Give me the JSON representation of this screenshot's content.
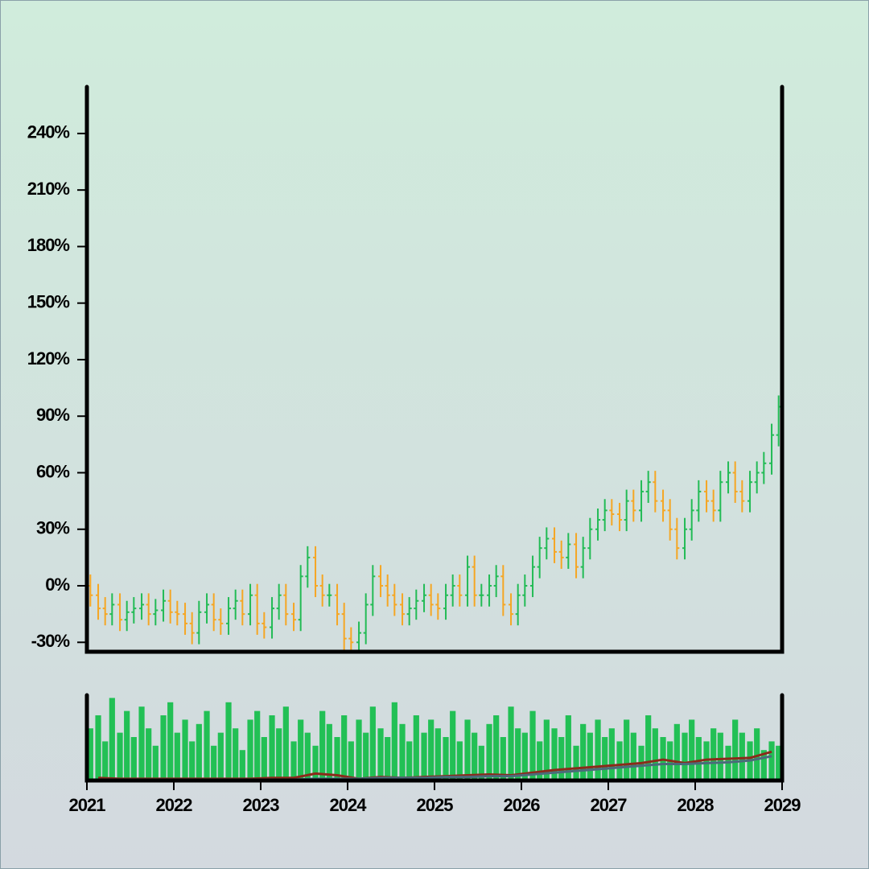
{
  "chart_data": [
    {
      "type": "ohlc",
      "x": [
        2021.04,
        2021.13,
        2021.21,
        2021.29,
        2021.38,
        2021.46,
        2021.54,
        2021.63,
        2021.71,
        2021.79,
        2021.88,
        2021.96,
        2022.04,
        2022.13,
        2022.21,
        2022.29,
        2022.38,
        2022.46,
        2022.54,
        2022.63,
        2022.71,
        2022.79,
        2022.88,
        2022.96,
        2023.04,
        2023.13,
        2023.21,
        2023.29,
        2023.38,
        2023.46,
        2023.54,
        2023.63,
        2023.71,
        2023.79,
        2023.88,
        2023.96,
        2024.04,
        2024.13,
        2024.21,
        2024.29,
        2024.38,
        2024.46,
        2024.54,
        2024.63,
        2024.71,
        2024.79,
        2024.88,
        2024.96,
        2025.04,
        2025.13,
        2025.21,
        2025.29,
        2025.38,
        2025.46,
        2025.54,
        2025.63,
        2025.71,
        2025.79,
        2025.88,
        2025.96,
        2026.04,
        2026.13,
        2026.21,
        2026.29,
        2026.38,
        2026.46,
        2026.54,
        2026.63,
        2026.71,
        2026.79,
        2026.88,
        2026.96,
        2027.04,
        2027.13,
        2027.21,
        2027.29,
        2027.38,
        2027.46,
        2027.54,
        2027.63,
        2027.71,
        2027.79,
        2027.88,
        2027.96,
        2028.04,
        2028.13,
        2028.21,
        2028.29,
        2028.38,
        2028.46,
        2028.54,
        2028.63,
        2028.71,
        2028.79,
        2028.88,
        2028.96
      ],
      "open": [
        0,
        -5,
        -12,
        -15,
        -10,
        -18,
        -14,
        -12,
        -10,
        -15,
        -13,
        -8,
        -14,
        -15,
        -20,
        -25,
        -14,
        -10,
        -18,
        -20,
        -12,
        -8,
        -15,
        -5,
        -20,
        -22,
        -12,
        -5,
        -15,
        -18,
        5,
        15,
        0,
        -5,
        -5,
        -15,
        -28,
        -30,
        -25,
        -10,
        5,
        0,
        -5,
        -10,
        -15,
        -12,
        -8,
        -5,
        -10,
        -12,
        -5,
        0,
        -5,
        10,
        -5,
        -5,
        0,
        5,
        -10,
        -15,
        -5,
        0,
        10,
        20,
        25,
        18,
        15,
        22,
        10,
        20,
        30,
        35,
        40,
        38,
        35,
        45,
        40,
        50,
        55,
        45,
        40,
        30,
        20,
        30,
        40,
        50,
        45,
        40,
        55,
        60,
        50,
        45,
        55,
        60,
        65,
        80
      ],
      "high": [
        6,
        1,
        -6,
        -4,
        -4,
        -8,
        -6,
        -4,
        -4,
        -7,
        -2,
        -2,
        -8,
        -9,
        -14,
        -8,
        -4,
        -4,
        -12,
        -6,
        -2,
        -2,
        1,
        1,
        -14,
        -6,
        1,
        1,
        -9,
        11,
        21,
        21,
        6,
        1,
        1,
        -9,
        -22,
        -19,
        -4,
        11,
        11,
        6,
        1,
        -4,
        -6,
        -2,
        1,
        1,
        -4,
        1,
        6,
        6,
        16,
        16,
        1,
        6,
        11,
        11,
        -4,
        1,
        6,
        16,
        26,
        31,
        31,
        24,
        28,
        28,
        26,
        36,
        41,
        46,
        46,
        44,
        51,
        51,
        56,
        61,
        61,
        51,
        46,
        36,
        36,
        46,
        56,
        56,
        51,
        61,
        66,
        66,
        56,
        61,
        66,
        71,
        86,
        101
      ],
      "low": [
        -11,
        -18,
        -21,
        -21,
        -24,
        -24,
        -20,
        -18,
        -21,
        -21,
        -19,
        -20,
        -21,
        -26,
        -31,
        -31,
        -20,
        -24,
        -26,
        -26,
        -18,
        -21,
        -21,
        -26,
        -28,
        -28,
        -18,
        -21,
        -24,
        -24,
        -1,
        -6,
        -11,
        -11,
        -21,
        -34,
        -36,
        -36,
        -31,
        -16,
        -6,
        -11,
        -16,
        -21,
        -21,
        -18,
        -14,
        -16,
        -18,
        -18,
        -11,
        -11,
        -11,
        -11,
        -11,
        -11,
        -6,
        -16,
        -21,
        -21,
        -11,
        -6,
        4,
        14,
        12,
        9,
        9,
        4,
        4,
        14,
        24,
        29,
        32,
        29,
        29,
        34,
        34,
        44,
        39,
        34,
        24,
        14,
        14,
        24,
        34,
        39,
        34,
        34,
        49,
        44,
        39,
        39,
        49,
        54,
        59,
        74
      ],
      "close": [
        -5,
        -12,
        -15,
        -10,
        -18,
        -14,
        -12,
        -10,
        -15,
        -13,
        -8,
        -14,
        -15,
        -20,
        -25,
        -14,
        -10,
        -18,
        -20,
        -12,
        -8,
        -15,
        -5,
        -20,
        -22,
        -12,
        -5,
        -15,
        -18,
        5,
        15,
        0,
        -5,
        -5,
        -15,
        -28,
        -30,
        -25,
        -10,
        5,
        0,
        -5,
        -10,
        -15,
        -12,
        -8,
        -5,
        -10,
        -12,
        -5,
        0,
        -5,
        10,
        -5,
        -5,
        0,
        5,
        -10,
        -15,
        -5,
        0,
        10,
        20,
        25,
        18,
        15,
        22,
        10,
        20,
        30,
        35,
        40,
        38,
        35,
        45,
        40,
        50,
        55,
        45,
        40,
        30,
        20,
        30,
        40,
        50,
        45,
        40,
        55,
        60,
        50,
        45,
        55,
        60,
        65,
        80,
        95
      ],
      "up_color": "#22bb55",
      "down_color": "#f5a623",
      "xlim": [
        2021,
        2029
      ],
      "ylim": [
        -35,
        266
      ],
      "yticks": [
        {
          "value": -30,
          "label": "-30%"
        },
        {
          "value": 0,
          "label": "0%"
        },
        {
          "value": 30,
          "label": "30%"
        },
        {
          "value": 60,
          "label": "60%"
        },
        {
          "value": 90,
          "label": "90%"
        },
        {
          "value": 120,
          "label": "120%"
        },
        {
          "value": 150,
          "label": "150%"
        },
        {
          "value": 180,
          "label": "180%"
        },
        {
          "value": 210,
          "label": "210%"
        },
        {
          "value": 240,
          "label": "240%"
        }
      ]
    },
    {
      "type": "bar",
      "x": [
        2021.04,
        2021.13,
        2021.21,
        2021.29,
        2021.38,
        2021.46,
        2021.54,
        2021.63,
        2021.71,
        2021.79,
        2021.88,
        2021.96,
        2022.04,
        2022.13,
        2022.21,
        2022.29,
        2022.38,
        2022.46,
        2022.54,
        2022.63,
        2022.71,
        2022.79,
        2022.88,
        2022.96,
        2023.04,
        2023.13,
        2023.21,
        2023.29,
        2023.38,
        2023.46,
        2023.54,
        2023.63,
        2023.71,
        2023.79,
        2023.88,
        2023.96,
        2024.04,
        2024.13,
        2024.21,
        2024.29,
        2024.38,
        2024.46,
        2024.54,
        2024.63,
        2024.71,
        2024.79,
        2024.88,
        2024.96,
        2025.04,
        2025.13,
        2025.21,
        2025.29,
        2025.38,
        2025.46,
        2025.54,
        2025.63,
        2025.71,
        2025.79,
        2025.88,
        2025.96,
        2026.04,
        2026.13,
        2026.21,
        2026.29,
        2026.38,
        2026.46,
        2026.54,
        2026.63,
        2026.71,
        2026.79,
        2026.88,
        2026.96,
        2027.04,
        2027.13,
        2027.21,
        2027.29,
        2027.38,
        2027.46,
        2027.54,
        2027.63,
        2027.71,
        2027.79,
        2027.88,
        2027.96,
        2028.04,
        2028.13,
        2028.21,
        2028.29,
        2028.38,
        2028.46,
        2028.54,
        2028.63,
        2028.71,
        2028.79,
        2028.88,
        2028.96
      ],
      "values": [
        60,
        75,
        45,
        95,
        55,
        80,
        50,
        85,
        60,
        40,
        75,
        90,
        55,
        70,
        45,
        65,
        80,
        40,
        55,
        90,
        60,
        35,
        70,
        80,
        50,
        75,
        60,
        85,
        45,
        70,
        55,
        40,
        80,
        65,
        50,
        75,
        45,
        70,
        55,
        85,
        60,
        50,
        90,
        65,
        45,
        75,
        55,
        70,
        60,
        50,
        80,
        45,
        70,
        55,
        40,
        65,
        75,
        50,
        85,
        60,
        55,
        80,
        45,
        70,
        60,
        50,
        75,
        40,
        65,
        55,
        70,
        50,
        60,
        45,
        70,
        55,
        40,
        75,
        60,
        50,
        45,
        65,
        55,
        70,
        50,
        45,
        60,
        55,
        40,
        70,
        55,
        45,
        60,
        35,
        45,
        40
      ],
      "color": "#22c055",
      "series": [
        {
          "color": "#8b2a1a",
          "x": [
            2021.13,
            2021.38,
            2021.63,
            2021.88,
            2022.13,
            2022.38,
            2022.63,
            2022.88,
            2023.13,
            2023.38,
            2023.63,
            2023.88,
            2024.13,
            2024.38,
            2024.63,
            2024.88,
            2025.13,
            2025.38,
            2025.63,
            2025.88,
            2026.13,
            2026.38,
            2026.63,
            2026.88,
            2027.13,
            2027.38,
            2027.63,
            2027.88,
            2028.13,
            2028.38,
            2028.63,
            2028.88
          ],
          "values": [
            3,
            2,
            2,
            2,
            2,
            2,
            2,
            2,
            3,
            3,
            8,
            6,
            2,
            4,
            3,
            4,
            5,
            6,
            7,
            6,
            9,
            12,
            14,
            16,
            18,
            20,
            24,
            20,
            24,
            25,
            26,
            33
          ]
        },
        {
          "color": "#4a6b7a",
          "x": [
            2021.13,
            2021.38,
            2021.63,
            2021.88,
            2022.13,
            2022.38,
            2022.63,
            2022.88,
            2023.13,
            2023.38,
            2023.63,
            2023.88,
            2024.13,
            2024.38,
            2024.63,
            2024.88,
            2025.13,
            2025.38,
            2025.63,
            2025.88,
            2026.13,
            2026.38,
            2026.63,
            2026.88,
            2027.13,
            2027.38,
            2027.63,
            2027.88,
            2028.13,
            2028.38,
            2028.63,
            2028.88
          ],
          "values": [
            1,
            1,
            1,
            1,
            1,
            1,
            1,
            1,
            1,
            1,
            2,
            2,
            2,
            3,
            3,
            3,
            4,
            4,
            5,
            5,
            7,
            9,
            11,
            13,
            15,
            17,
            19,
            19,
            20,
            21,
            23,
            28
          ]
        }
      ],
      "xlim": [
        2021,
        2029
      ],
      "xticks": [
        2021,
        2022,
        2023,
        2024,
        2025,
        2026,
        2027,
        2028,
        2029
      ],
      "ylim": [
        0,
        100
      ]
    }
  ]
}
